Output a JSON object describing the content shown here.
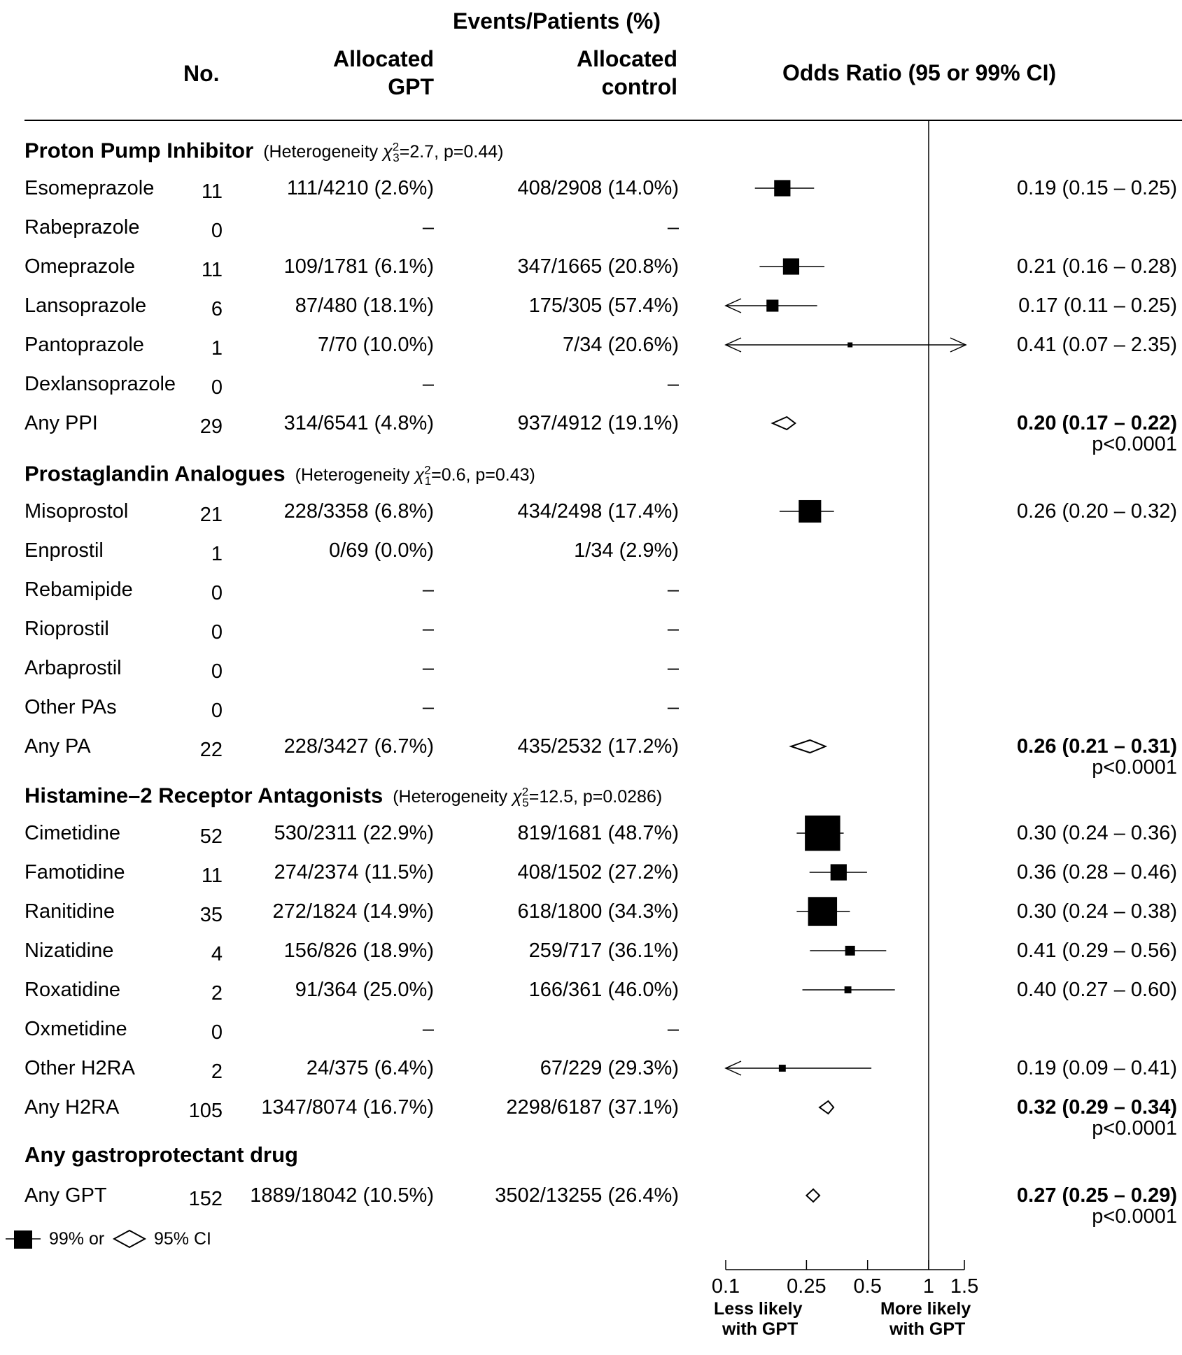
{
  "header": {
    "events_group": "Events/Patients (%)",
    "no": "No.",
    "gpt_line1": "Allocated",
    "gpt_line2": "GPT",
    "ctl_line1": "Allocated",
    "ctl_line2": "control",
    "or": "Odds Ratio (95 or 99% CI)"
  },
  "sections": [
    {
      "title": "Proton Pump Inhibitor",
      "het_prefix": "(Heterogeneity ",
      "het_df": "3",
      "het_suffix": "=2.7,  p=0.44)",
      "rows": [
        {
          "name": "Esomeprazole",
          "no": "11",
          "gpt": "111/4210 (2.6%)",
          "ctl": "408/2908 (14.0%)",
          "or_text": "0.19 (0.15 – 0.25)"
        },
        {
          "name": "Rabeprazole",
          "no": "0",
          "gpt": "–",
          "ctl": "–",
          "or_text": ""
        },
        {
          "name": "Omeprazole",
          "no": "11",
          "gpt": "109/1781 (6.1%)",
          "ctl": "347/1665 (20.8%)",
          "or_text": "0.21 (0.16 – 0.28)"
        },
        {
          "name": "Lansoprazole",
          "no": "6",
          "gpt": "87/480 (18.1%)",
          "ctl": "175/305 (57.4%)",
          "or_text": "0.17 (0.11 – 0.25)"
        },
        {
          "name": "Pantoprazole",
          "no": "1",
          "gpt": "7/70 (10.0%)",
          "ctl": "7/34 (20.6%)",
          "or_text": "0.41 (0.07 – 2.35)"
        },
        {
          "name": "Dexlansoprazole",
          "no": "0",
          "gpt": "–",
          "ctl": "–",
          "or_text": ""
        },
        {
          "name": "Any PPI",
          "no": "29",
          "gpt": "314/6541 (4.8%)",
          "ctl": "937/4912 (19.1%)",
          "or_text": "0.20 (0.17 – 0.22)",
          "p": "p<0.0001",
          "total": true
        }
      ]
    },
    {
      "title": "Prostaglandin Analogues",
      "het_prefix": "(Heterogeneity ",
      "het_df": "1",
      "het_suffix": "=0.6,  p=0.43)",
      "rows": [
        {
          "name": "Misoprostol",
          "no": "21",
          "gpt": "228/3358 (6.8%)",
          "ctl": "434/2498 (17.4%)",
          "or_text": "0.26 (0.20 – 0.32)"
        },
        {
          "name": "Enprostil",
          "no": "1",
          "gpt": "0/69 (0.0%)",
          "ctl": "1/34 (2.9%)",
          "or_text": ""
        },
        {
          "name": "Rebamipide",
          "no": "0",
          "gpt": "–",
          "ctl": "–",
          "or_text": ""
        },
        {
          "name": "Rioprostil",
          "no": "0",
          "gpt": "–",
          "ctl": "–",
          "or_text": ""
        },
        {
          "name": "Arbaprostil",
          "no": "0",
          "gpt": "–",
          "ctl": "–",
          "or_text": ""
        },
        {
          "name": "Other PAs",
          "no": "0",
          "gpt": "–",
          "ctl": "–",
          "or_text": ""
        },
        {
          "name": "Any PA",
          "no": "22",
          "gpt": "228/3427 (6.7%)",
          "ctl": "435/2532 (17.2%)",
          "or_text": "0.26 (0.21 – 0.31)",
          "p": "p<0.0001",
          "total": true
        }
      ]
    },
    {
      "title": "Histamine–2 Receptor Antagonists",
      "het_prefix": "(Heterogeneity ",
      "het_df": "5",
      "het_suffix": "=12.5,  p=0.0286)",
      "rows": [
        {
          "name": "Cimetidine",
          "no": "52",
          "gpt": "530/2311 (22.9%)",
          "ctl": "819/1681 (48.7%)",
          "or_text": "0.30 (0.24 – 0.36)"
        },
        {
          "name": "Famotidine",
          "no": "11",
          "gpt": "274/2374 (11.5%)",
          "ctl": "408/1502 (27.2%)",
          "or_text": "0.36 (0.28 – 0.46)"
        },
        {
          "name": "Ranitidine",
          "no": "35",
          "gpt": "272/1824 (14.9%)",
          "ctl": "618/1800 (34.3%)",
          "or_text": "0.30 (0.24 – 0.38)"
        },
        {
          "name": "Nizatidine",
          "no": "4",
          "gpt": "156/826 (18.9%)",
          "ctl": "259/717 (36.1%)",
          "or_text": "0.41 (0.29 – 0.56)"
        },
        {
          "name": "Roxatidine",
          "no": "2",
          "gpt": "91/364 (25.0%)",
          "ctl": "166/361 (46.0%)",
          "or_text": "0.40 (0.27 – 0.60)"
        },
        {
          "name": "Oxmetidine",
          "no": "0",
          "gpt": "–",
          "ctl": "–",
          "or_text": ""
        },
        {
          "name": "Other H2RA",
          "no": "2",
          "gpt": "24/375 (6.4%)",
          "ctl": "67/229 (29.3%)",
          "or_text": "0.19 (0.09 – 0.41)"
        },
        {
          "name": "Any H2RA",
          "no": "105",
          "gpt": "1347/8074 (16.7%)",
          "ctl": "2298/6187 (37.1%)",
          "or_text": "0.32 (0.29 – 0.34)",
          "p": "p<0.0001",
          "total": true
        }
      ]
    },
    {
      "title": "Any gastroprotectant drug",
      "rows": [
        {
          "name": "Any GPT",
          "no": "152",
          "gpt": "1889/18042 (10.5%)",
          "ctl": "3502/13255 (26.4%)",
          "or_text": "0.27 (0.25 – 0.29)",
          "p": "p<0.0001",
          "total": true
        }
      ]
    }
  ],
  "legend": {
    "box_text": "99% or",
    "diamond_text": "95% CI"
  },
  "axis": {
    "ticks": [
      "0.1",
      "0.25",
      "0.5",
      "1",
      "1.5"
    ],
    "left_caption_1": "Less likely",
    "left_caption_2": "with GPT",
    "right_caption_1": "More likely",
    "right_caption_2": "with GPT"
  },
  "chart_data": {
    "type": "forest",
    "scale": "log",
    "xlim": [
      0.1,
      1.5
    ],
    "reference_line": 1,
    "points": [
      {
        "label": "Esomeprazole",
        "or": 0.19,
        "lo": 0.15,
        "hi": 0.25
      },
      {
        "label": "Omeprazole",
        "or": 0.21,
        "lo": 0.16,
        "hi": 0.28
      },
      {
        "label": "Lansoprazole",
        "or": 0.17,
        "lo": 0.11,
        "hi": 0.25
      },
      {
        "label": "Pantoprazole",
        "or": 0.41,
        "lo": 0.07,
        "hi": 2.35
      },
      {
        "label": "Any PPI",
        "or": 0.2,
        "lo": 0.17,
        "hi": 0.22,
        "total": true
      },
      {
        "label": "Misoprostol",
        "or": 0.26,
        "lo": 0.2,
        "hi": 0.32
      },
      {
        "label": "Any PA",
        "or": 0.26,
        "lo": 0.21,
        "hi": 0.31,
        "total": true
      },
      {
        "label": "Cimetidine",
        "or": 0.3,
        "lo": 0.24,
        "hi": 0.36
      },
      {
        "label": "Famotidine",
        "or": 0.36,
        "lo": 0.28,
        "hi": 0.46
      },
      {
        "label": "Ranitidine",
        "or": 0.3,
        "lo": 0.24,
        "hi": 0.38
      },
      {
        "label": "Nizatidine",
        "or": 0.41,
        "lo": 0.29,
        "hi": 0.56
      },
      {
        "label": "Roxatidine",
        "or": 0.4,
        "lo": 0.27,
        "hi": 0.6
      },
      {
        "label": "Other H2RA",
        "or": 0.19,
        "lo": 0.09,
        "hi": 0.41
      },
      {
        "label": "Any H2RA",
        "or": 0.32,
        "lo": 0.29,
        "hi": 0.34,
        "total": true
      },
      {
        "label": "Any GPT",
        "or": 0.27,
        "lo": 0.25,
        "hi": 0.29,
        "total": true
      }
    ],
    "weights": {
      "Esomeprazole": 11,
      "Omeprazole": 11,
      "Lansoprazole": 6,
      "Pantoprazole": 1,
      "Misoprostol": 21,
      "Cimetidine": 52,
      "Famotidine": 11,
      "Ranitidine": 35,
      "Nizatidine": 4,
      "Roxatidine": 2,
      "Other H2RA": 2
    }
  }
}
